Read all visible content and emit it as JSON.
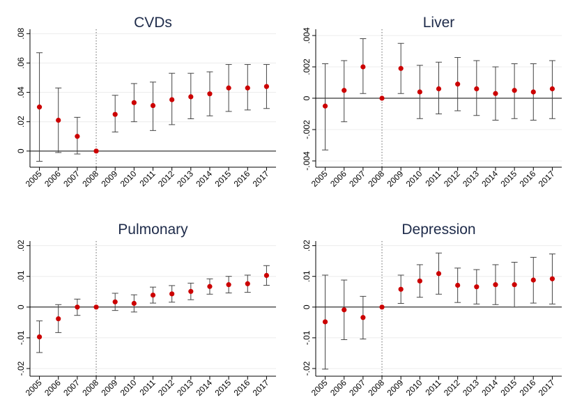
{
  "chart_data": [
    {
      "type": "scatter",
      "title": "CVDs",
      "categories": [
        "2005",
        "2006",
        "2007",
        "2008",
        "2009",
        "2010",
        "2011",
        "2012",
        "2013",
        "2014",
        "2015",
        "2016",
        "2017"
      ],
      "yticks": [
        0,
        0.02,
        0.04,
        0.06,
        0.08
      ],
      "ytick_labels": [
        "0",
        ".02",
        ".04",
        ".06",
        ".08"
      ],
      "ylim": [
        -0.011,
        0.083
      ],
      "reference_category": "2008",
      "grid": true,
      "series": [
        {
          "values": [
            0.03,
            0.021,
            0.01,
            0.0,
            0.025,
            0.033,
            0.031,
            0.035,
            0.037,
            0.039,
            0.043,
            0.043,
            0.044
          ],
          "ci_low": [
            -0.007,
            -0.001,
            -0.002,
            0.0,
            0.013,
            0.02,
            0.014,
            0.018,
            0.022,
            0.024,
            0.027,
            0.028,
            0.029
          ],
          "ci_high": [
            0.067,
            0.043,
            0.023,
            0.0,
            0.038,
            0.046,
            0.047,
            0.053,
            0.053,
            0.054,
            0.059,
            0.059,
            0.059
          ]
        }
      ]
    },
    {
      "type": "scatter",
      "title": "Liver",
      "categories": [
        "2005",
        "2006",
        "2007",
        "2008",
        "2009",
        "2010",
        "2011",
        "2012",
        "2013",
        "2014",
        "2015",
        "2016",
        "2017"
      ],
      "yticks": [
        -0.004,
        -0.002,
        0,
        0.002,
        0.004
      ],
      "ytick_labels": [
        "-.004",
        "-.002",
        "0",
        ".002",
        ".004"
      ],
      "ylim": [
        -0.0044,
        0.0044
      ],
      "reference_category": "2008",
      "grid": true,
      "series": [
        {
          "values": [
            -0.0005,
            0.0005,
            0.002,
            0.0,
            0.0019,
            0.0004,
            0.0006,
            0.0009,
            0.0006,
            0.0003,
            0.0005,
            0.0004,
            0.0006
          ],
          "ci_low": [
            -0.0033,
            -0.0015,
            0.0003,
            0.0,
            0.0003,
            -0.0013,
            -0.001,
            -0.0008,
            -0.0011,
            -0.0014,
            -0.0013,
            -0.0014,
            -0.0013
          ],
          "ci_high": [
            0.0022,
            0.0024,
            0.0038,
            0.0,
            0.0035,
            0.0021,
            0.0023,
            0.0026,
            0.0024,
            0.002,
            0.0022,
            0.0022,
            0.0024
          ]
        }
      ]
    },
    {
      "type": "scatter",
      "title": "Pulmonary",
      "categories": [
        "2005",
        "2006",
        "2007",
        "2008",
        "2009",
        "2010",
        "2011",
        "2012",
        "2013",
        "2014",
        "2015",
        "2016",
        "2017"
      ],
      "yticks": [
        -0.02,
        -0.01,
        0,
        0.01,
        0.02
      ],
      "ytick_labels": [
        "-.02",
        "-.01",
        "0",
        ".01",
        ".02"
      ],
      "ylim": [
        -0.0225,
        0.0215
      ],
      "reference_category": "2008",
      "grid": true,
      "series": [
        {
          "values": [
            -0.0097,
            -0.0038,
            0.0,
            0.0,
            0.0017,
            0.0012,
            0.0039,
            0.0043,
            0.0051,
            0.0067,
            0.0073,
            0.0076,
            0.0103
          ],
          "ci_low": [
            -0.0148,
            -0.0083,
            -0.0027,
            0.0,
            -0.0011,
            -0.0016,
            0.0013,
            0.0016,
            0.0024,
            0.0042,
            0.0046,
            0.0048,
            0.0071
          ],
          "ci_high": [
            -0.0045,
            0.0008,
            0.0026,
            0.0,
            0.0045,
            0.004,
            0.0065,
            0.007,
            0.0078,
            0.0092,
            0.01,
            0.0104,
            0.0135
          ]
        }
      ]
    },
    {
      "type": "scatter",
      "title": "Depression",
      "categories": [
        "2005",
        "2006",
        "2007",
        "2008",
        "2009",
        "2010",
        "2011",
        "2012",
        "2013",
        "2014",
        "2015",
        "2016",
        "2017"
      ],
      "yticks": [
        -0.02,
        -0.01,
        0,
        0.01,
        0.02
      ],
      "ytick_labels": [
        "-.02",
        "-.01",
        "0",
        ".01",
        ".02"
      ],
      "ylim": [
        -0.0225,
        0.0215
      ],
      "reference_category": "2008",
      "grid": true,
      "series": [
        {
          "values": [
            -0.0048,
            -0.0009,
            -0.0034,
            0.0,
            0.0058,
            0.0085,
            0.0109,
            0.0071,
            0.0066,
            0.0073,
            0.0073,
            0.0088,
            0.0092
          ],
          "ci_low": [
            -0.0202,
            -0.0106,
            -0.0104,
            0.0,
            0.0012,
            0.0032,
            0.0042,
            0.0015,
            0.001,
            0.0008,
            0.0,
            0.0013,
            0.001
          ],
          "ci_high": [
            0.0104,
            0.0088,
            0.0035,
            0.0,
            0.0104,
            0.0138,
            0.0176,
            0.0127,
            0.0122,
            0.0138,
            0.0146,
            0.0162,
            0.0173
          ]
        }
      ]
    }
  ]
}
